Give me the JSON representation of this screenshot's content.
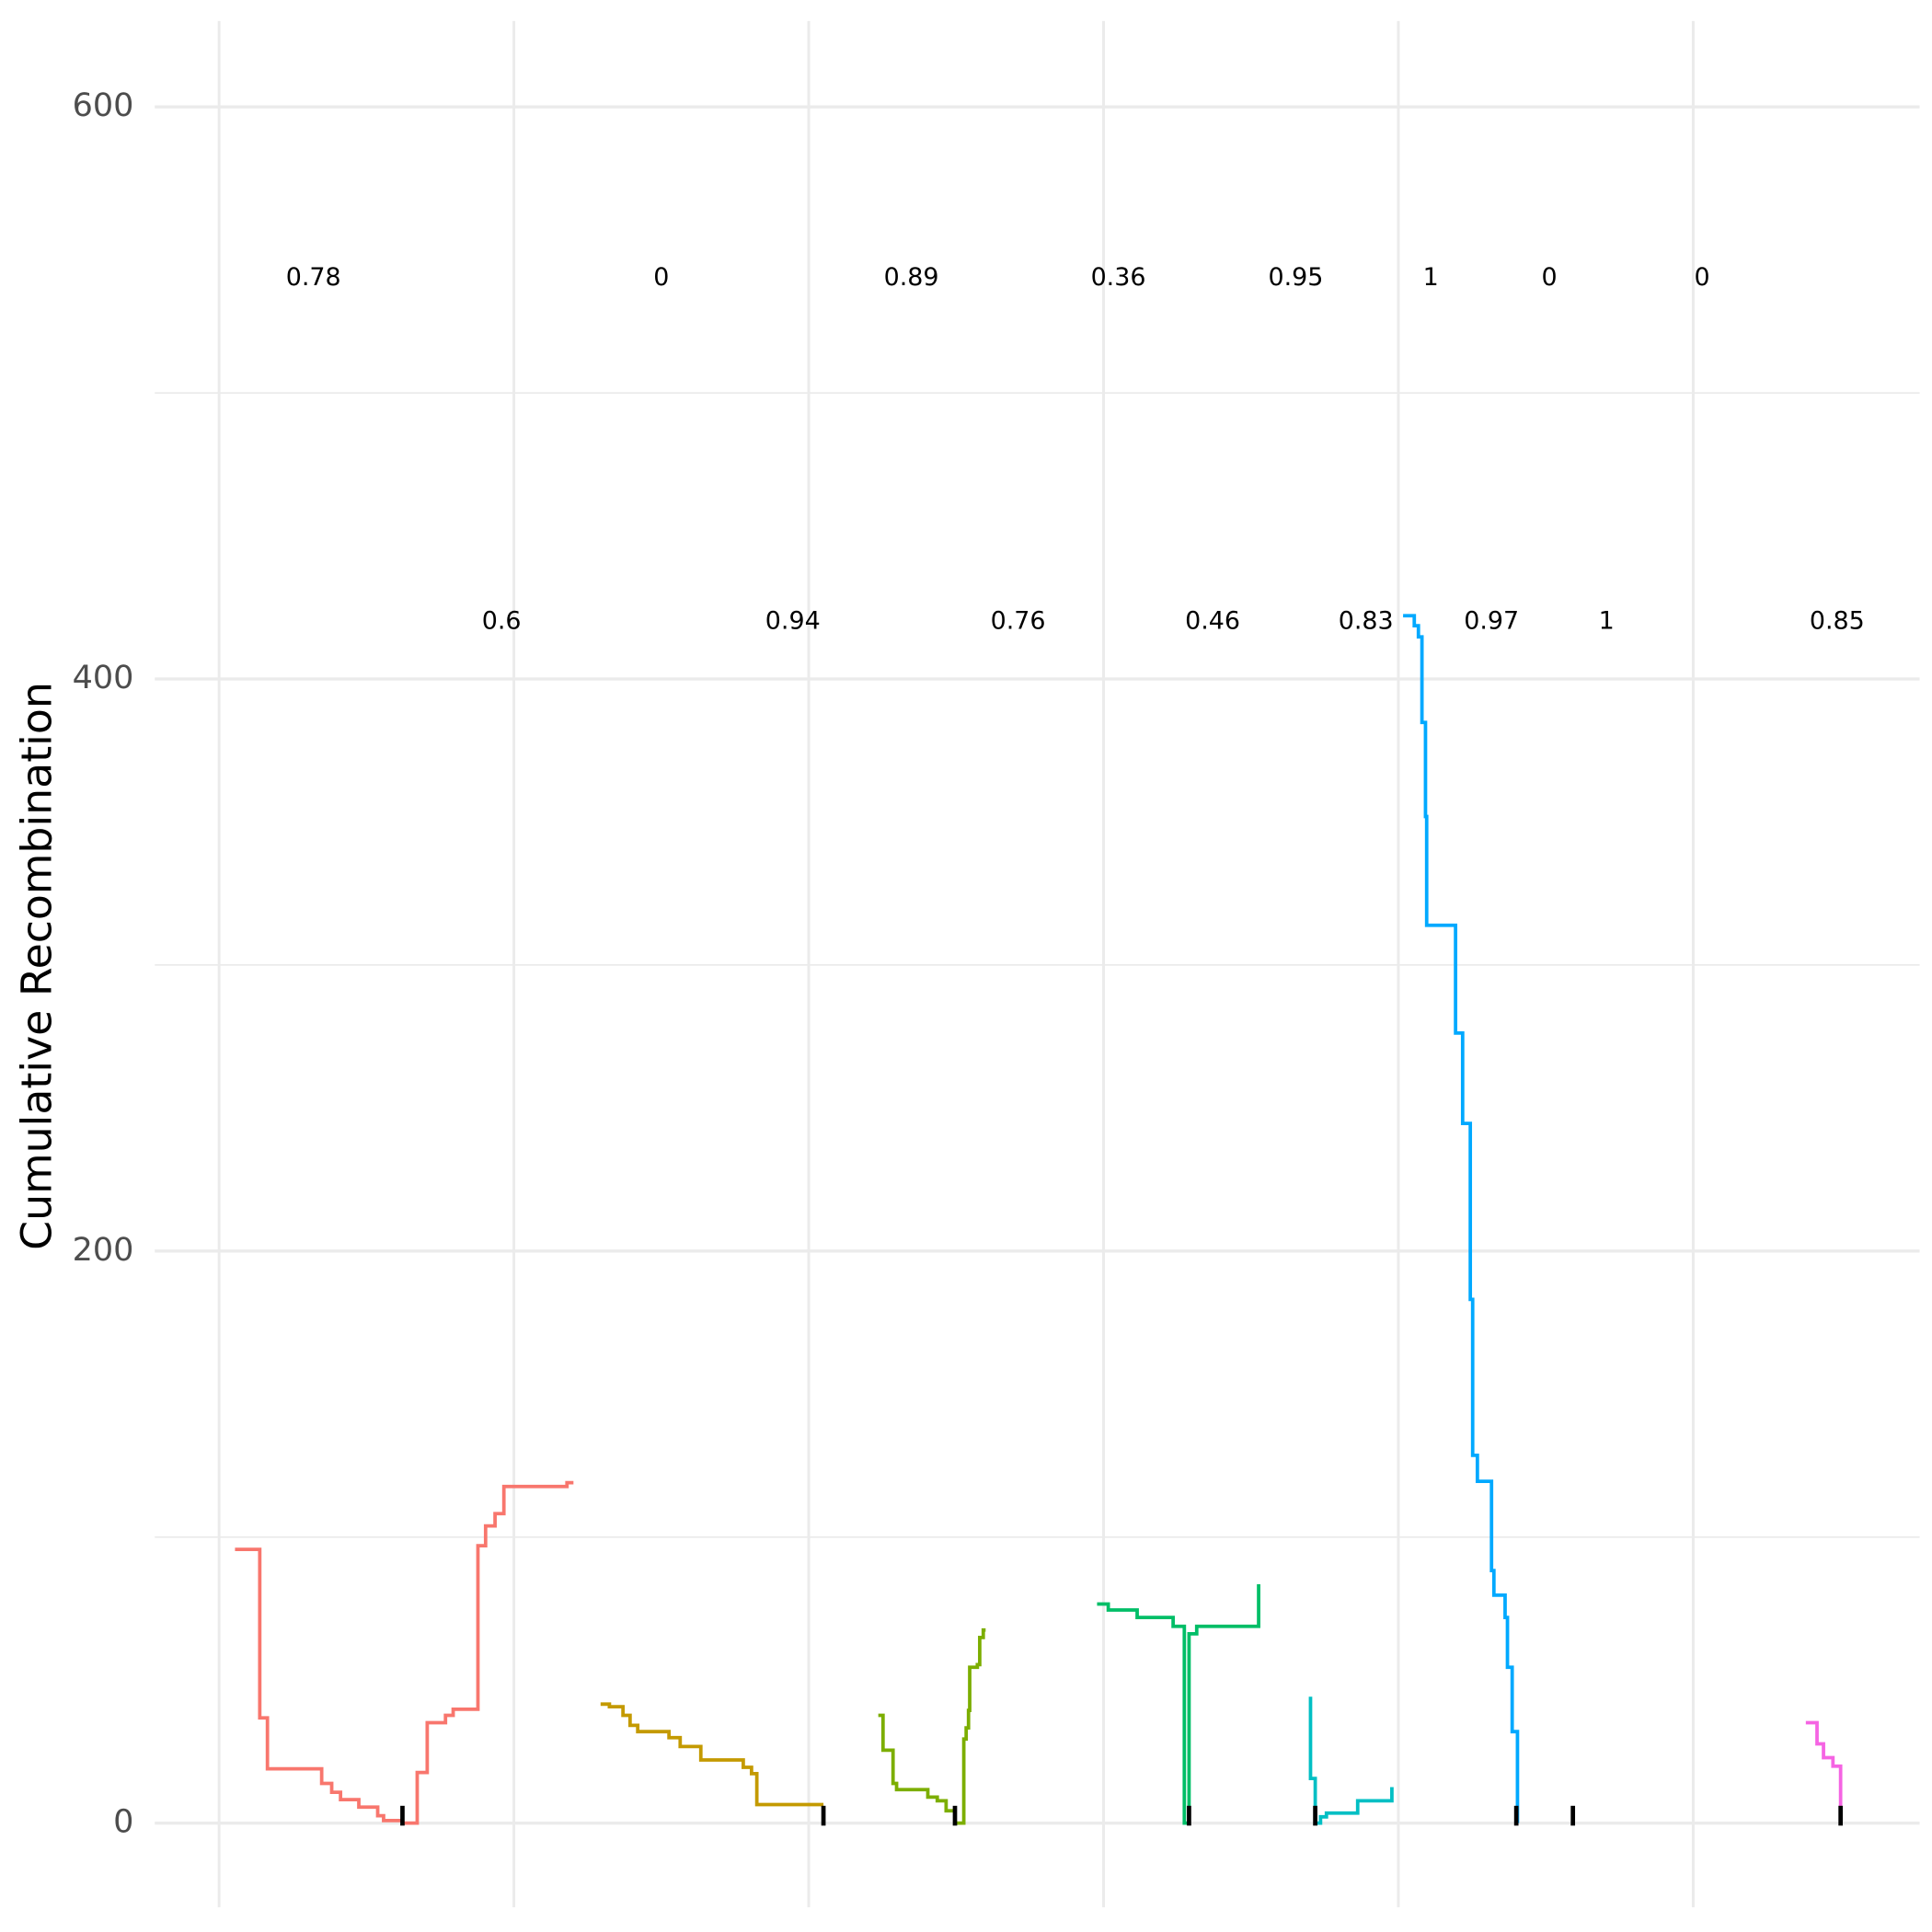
{
  "chart_data": {
    "type": "line",
    "y_label": "Cumulative Recombination",
    "xlim": [
      -0.109,
      2.884
    ],
    "ylim": [
      -29.4,
      630
    ],
    "yticks": [
      0,
      200,
      400,
      600
    ],
    "y_minor_grid": [
      100,
      300,
      500
    ],
    "x_grid": [
      0,
      0.5,
      1,
      1.5,
      2,
      2.5
    ],
    "grid": true,
    "series": [
      {
        "color": "#F8766D",
        "x": [
          0.027,
          0.069,
          0.069,
          0.082,
          0.082,
          0.174,
          0.174,
          0.191,
          0.191,
          0.206,
          0.206,
          0.237,
          0.237,
          0.269,
          0.269,
          0.279,
          0.279,
          0.311,
          0.311,
          0.336,
          0.336,
          0.353,
          0.353,
          0.384,
          0.384,
          0.397,
          0.397,
          0.439,
          0.439,
          0.452,
          0.452,
          0.468,
          0.468,
          0.483,
          0.483,
          0.59,
          0.59,
          0.601
        ],
        "values": [
          95.7,
          95.7,
          36.8,
          36.8,
          19,
          19,
          13.9,
          13.9,
          10.8,
          10.8,
          8.2,
          8.2,
          5.6,
          5.6,
          2.6,
          2.6,
          0.9,
          0.9,
          0,
          0,
          17.7,
          17.7,
          35.1,
          35.1,
          37.7,
          37.7,
          39.8,
          39.8,
          97,
          97,
          103.9,
          103.9,
          108.2,
          108.2,
          117.7,
          117.7,
          119,
          119
        ]
      },
      {
        "color": "#C49A00",
        "x": [
          0.647,
          0.662,
          0.662,
          0.685,
          0.685,
          0.697,
          0.697,
          0.71,
          0.71,
          0.763,
          0.763,
          0.782,
          0.782,
          0.817,
          0.817,
          0.889,
          0.889,
          0.903,
          0.903,
          0.912,
          0.912,
          1.025
        ],
        "values": [
          41.6,
          41.6,
          40.7,
          40.7,
          37.7,
          37.7,
          34.2,
          34.2,
          32,
          32,
          29.9,
          29.9,
          26.8,
          26.8,
          22.1,
          22.1,
          19.5,
          19.5,
          17.3,
          17.3,
          6.5,
          6.5
        ]
      },
      {
        "color": "#7CAE00",
        "x": [
          1.118,
          1.126,
          1.126,
          1.143,
          1.143,
          1.149,
          1.149,
          1.202,
          1.202,
          1.218,
          1.218,
          1.233,
          1.233,
          1.248,
          1.248,
          1.263,
          1.263,
          1.267,
          1.267,
          1.271,
          1.271,
          1.273,
          1.273,
          1.286,
          1.286,
          1.29,
          1.29,
          1.296,
          1.296,
          1.3
        ],
        "values": [
          37.7,
          37.7,
          25.5,
          25.5,
          13.9,
          13.9,
          11.7,
          11.7,
          9.1,
          9.1,
          7.8,
          7.8,
          4.3,
          4.3,
          0,
          0,
          29.4,
          29.4,
          33.3,
          33.3,
          39.4,
          39.4,
          54.5,
          54.5,
          55.4,
          55.4,
          64.9,
          64.9,
          67.5,
          67.5
        ]
      },
      {
        "color": "#00BE67",
        "x": [
          1.489,
          1.508,
          1.508,
          1.557,
          1.557,
          1.618,
          1.618,
          1.637,
          1.637,
          1.645,
          1.645,
          1.658,
          1.658,
          1.763,
          1.763
        ],
        "values": [
          76.6,
          76.6,
          74.5,
          74.5,
          71.9,
          71.9,
          68.8,
          68.8,
          0,
          0,
          66.2,
          66.2,
          68.8,
          68.8,
          83.5
        ]
      },
      {
        "color": "#00BFC4",
        "x": [
          1.851,
          1.851,
          1.859,
          1.859,
          1.868,
          1.868,
          1.878,
          1.878,
          1.931,
          1.931,
          1.989,
          1.989
        ],
        "values": [
          44.2,
          15.6,
          15.6,
          0,
          0,
          2.2,
          2.2,
          3.5,
          3.5,
          7.8,
          7.8,
          12.6
        ]
      },
      {
        "color": "#00A9FF",
        "x": [
          2.008,
          2.027,
          2.027,
          2.034,
          2.034,
          2.04,
          2.04,
          2.046,
          2.046,
          2.048,
          2.048,
          2.097,
          2.097,
          2.109,
          2.109,
          2.122,
          2.122,
          2.126,
          2.126,
          2.134,
          2.134,
          2.158,
          2.158,
          2.162,
          2.162,
          2.181,
          2.181,
          2.185,
          2.185,
          2.193,
          2.193,
          2.202,
          2.202
        ],
        "values": [
          422.1,
          422.1,
          418.6,
          418.6,
          414.7,
          414.7,
          384.8,
          384.8,
          351.9,
          351.9,
          313.9,
          313.9,
          276.2,
          276.2,
          244.6,
          244.6,
          183.1,
          183.1,
          128.6,
          128.6,
          119.5,
          119.5,
          88.3,
          88.3,
          79.7,
          79.7,
          71.9,
          71.9,
          54.5,
          54.5,
          32,
          32,
          0
        ]
      },
      {
        "color": "#F564E3",
        "x": [
          2.691,
          2.71,
          2.71,
          2.721,
          2.721,
          2.737,
          2.737,
          2.75,
          2.75
        ],
        "values": [
          35.1,
          35.1,
          27.7,
          27.7,
          22.9,
          22.9,
          19.9,
          19.9,
          0
        ]
      }
    ],
    "rug_x": [
      0.311,
      1.025,
      1.248,
      1.645,
      1.859,
      2.2,
      2.296,
      2.75
    ],
    "rug_color": "#000000",
    "annotations": [
      {
        "text": "0.78",
        "x": 0.16,
        "y": 540
      },
      {
        "text": "0",
        "x": 0.75,
        "y": 540
      },
      {
        "text": "0.89",
        "x": 1.174,
        "y": 540
      },
      {
        "text": "0.36",
        "x": 1.525,
        "y": 540
      },
      {
        "text": "0.95",
        "x": 1.826,
        "y": 540
      },
      {
        "text": "1",
        "x": 2.055,
        "y": 540
      },
      {
        "text": "0",
        "x": 2.256,
        "y": 540
      },
      {
        "text": "0",
        "x": 2.515,
        "y": 540
      },
      {
        "text": "0.6",
        "x": 0.479,
        "y": 420
      },
      {
        "text": "0.94",
        "x": 0.973,
        "y": 420
      },
      {
        "text": "0.76",
        "x": 1.355,
        "y": 420
      },
      {
        "text": "0.46",
        "x": 1.685,
        "y": 420
      },
      {
        "text": "0.83",
        "x": 1.945,
        "y": 420
      },
      {
        "text": "0.97",
        "x": 2.158,
        "y": 420
      },
      {
        "text": "1",
        "x": 2.353,
        "y": 420
      },
      {
        "text": "0.85",
        "x": 2.744,
        "y": 420
      }
    ]
  }
}
